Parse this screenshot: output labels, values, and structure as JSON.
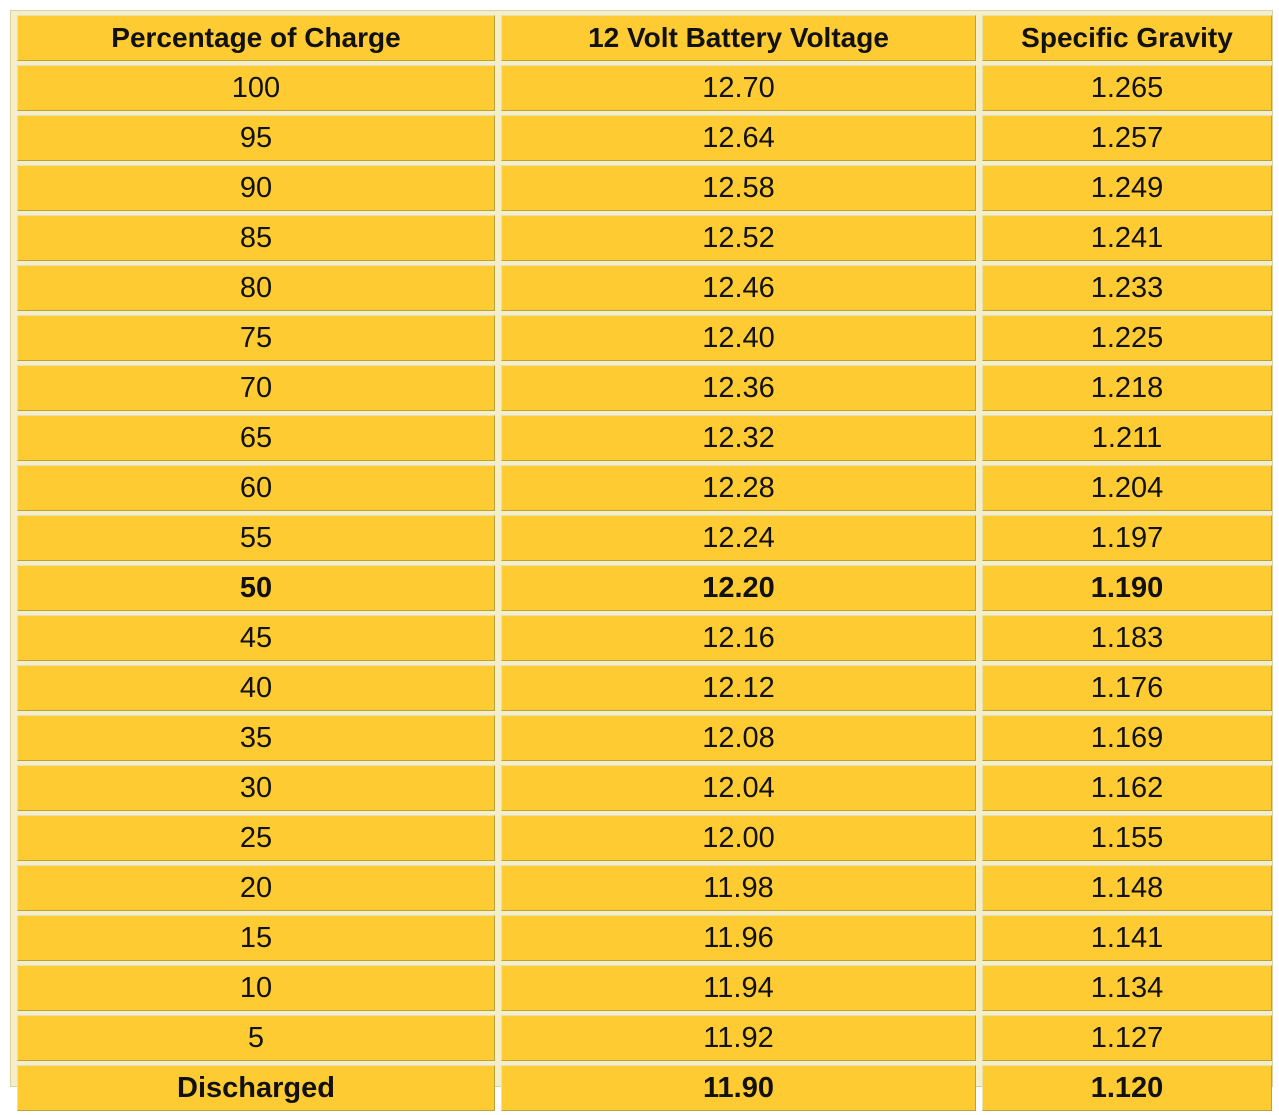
{
  "table": {
    "headers": [
      "Percentage of Charge",
      "12 Volt Battery Voltage",
      "Specific Gravity"
    ],
    "rows": [
      {
        "charge": "100",
        "voltage": "12.70",
        "gravity": "1.265",
        "bold": false
      },
      {
        "charge": "95",
        "voltage": "12.64",
        "gravity": "1.257",
        "bold": false
      },
      {
        "charge": "90",
        "voltage": "12.58",
        "gravity": "1.249",
        "bold": false
      },
      {
        "charge": "85",
        "voltage": "12.52",
        "gravity": "1.241",
        "bold": false
      },
      {
        "charge": "80",
        "voltage": "12.46",
        "gravity": "1.233",
        "bold": false
      },
      {
        "charge": "75",
        "voltage": "12.40",
        "gravity": "1.225",
        "bold": false
      },
      {
        "charge": "70",
        "voltage": "12.36",
        "gravity": "1.218",
        "bold": false
      },
      {
        "charge": "65",
        "voltage": "12.32",
        "gravity": "1.211",
        "bold": false
      },
      {
        "charge": "60",
        "voltage": "12.28",
        "gravity": "1.204",
        "bold": false
      },
      {
        "charge": "55",
        "voltage": "12.24",
        "gravity": "1.197",
        "bold": false
      },
      {
        "charge": "50",
        "voltage": "12.20",
        "gravity": "1.190",
        "bold": true
      },
      {
        "charge": "45",
        "voltage": "12.16",
        "gravity": "1.183",
        "bold": false
      },
      {
        "charge": "40",
        "voltage": "12.12",
        "gravity": "1.176",
        "bold": false
      },
      {
        "charge": "35",
        "voltage": "12.08",
        "gravity": "1.169",
        "bold": false
      },
      {
        "charge": "30",
        "voltage": "12.04",
        "gravity": "1.162",
        "bold": false
      },
      {
        "charge": "25",
        "voltage": "12.00",
        "gravity": "1.155",
        "bold": false
      },
      {
        "charge": "20",
        "voltage": "11.98",
        "gravity": "1.148",
        "bold": false
      },
      {
        "charge": "15",
        "voltage": "11.96",
        "gravity": "1.141",
        "bold": false
      },
      {
        "charge": "10",
        "voltage": "11.94",
        "gravity": "1.134",
        "bold": false
      },
      {
        "charge": "5",
        "voltage": "11.92",
        "gravity": "1.127",
        "bold": false
      },
      {
        "charge": "Discharged",
        "voltage": "11.90",
        "gravity": "1.120",
        "bold": true
      }
    ]
  },
  "colors": {
    "cell_fill": "#fecb32",
    "grid_background": "#f4efc8",
    "text": "#111111"
  }
}
